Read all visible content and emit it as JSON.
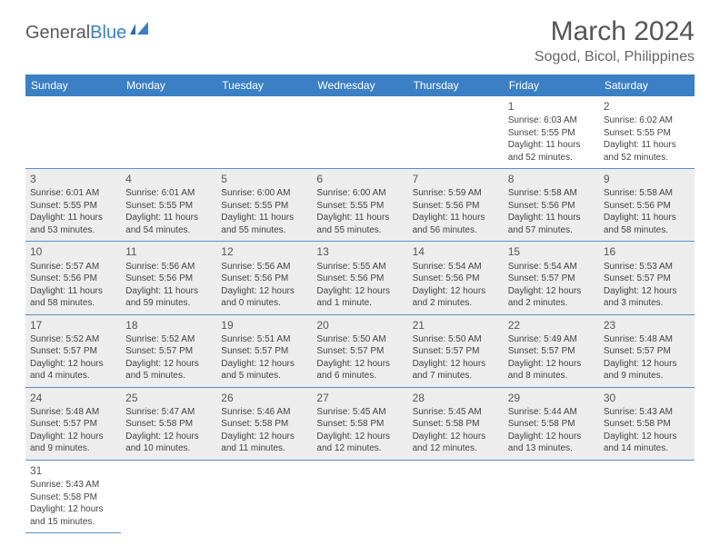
{
  "logo": {
    "text1": "General",
    "text2": "Blue"
  },
  "title": "March 2024",
  "location": "Sogod, Bicol, Philippines",
  "colors": {
    "header_bg": "#3b7fc4",
    "header_text": "#ffffff",
    "cell_border": "#5a8fc7",
    "shade_bg": "#ededed",
    "text": "#444444",
    "title_text": "#555555"
  },
  "weekdays": [
    "Sunday",
    "Monday",
    "Tuesday",
    "Wednesday",
    "Thursday",
    "Friday",
    "Saturday"
  ],
  "weeks": [
    [
      null,
      null,
      null,
      null,
      null,
      {
        "n": "1",
        "sr": "Sunrise: 6:03 AM",
        "ss": "Sunset: 5:55 PM",
        "d1": "Daylight: 11 hours",
        "d2": "and 52 minutes."
      },
      {
        "n": "2",
        "sr": "Sunrise: 6:02 AM",
        "ss": "Sunset: 5:55 PM",
        "d1": "Daylight: 11 hours",
        "d2": "and 52 minutes."
      }
    ],
    [
      {
        "n": "3",
        "sr": "Sunrise: 6:01 AM",
        "ss": "Sunset: 5:55 PM",
        "d1": "Daylight: 11 hours",
        "d2": "and 53 minutes."
      },
      {
        "n": "4",
        "sr": "Sunrise: 6:01 AM",
        "ss": "Sunset: 5:55 PM",
        "d1": "Daylight: 11 hours",
        "d2": "and 54 minutes."
      },
      {
        "n": "5",
        "sr": "Sunrise: 6:00 AM",
        "ss": "Sunset: 5:55 PM",
        "d1": "Daylight: 11 hours",
        "d2": "and 55 minutes."
      },
      {
        "n": "6",
        "sr": "Sunrise: 6:00 AM",
        "ss": "Sunset: 5:55 PM",
        "d1": "Daylight: 11 hours",
        "d2": "and 55 minutes."
      },
      {
        "n": "7",
        "sr": "Sunrise: 5:59 AM",
        "ss": "Sunset: 5:56 PM",
        "d1": "Daylight: 11 hours",
        "d2": "and 56 minutes."
      },
      {
        "n": "8",
        "sr": "Sunrise: 5:58 AM",
        "ss": "Sunset: 5:56 PM",
        "d1": "Daylight: 11 hours",
        "d2": "and 57 minutes."
      },
      {
        "n": "9",
        "sr": "Sunrise: 5:58 AM",
        "ss": "Sunset: 5:56 PM",
        "d1": "Daylight: 11 hours",
        "d2": "and 58 minutes."
      }
    ],
    [
      {
        "n": "10",
        "sr": "Sunrise: 5:57 AM",
        "ss": "Sunset: 5:56 PM",
        "d1": "Daylight: 11 hours",
        "d2": "and 58 minutes."
      },
      {
        "n": "11",
        "sr": "Sunrise: 5:56 AM",
        "ss": "Sunset: 5:56 PM",
        "d1": "Daylight: 11 hours",
        "d2": "and 59 minutes."
      },
      {
        "n": "12",
        "sr": "Sunrise: 5:56 AM",
        "ss": "Sunset: 5:56 PM",
        "d1": "Daylight: 12 hours",
        "d2": "and 0 minutes."
      },
      {
        "n": "13",
        "sr": "Sunrise: 5:55 AM",
        "ss": "Sunset: 5:56 PM",
        "d1": "Daylight: 12 hours",
        "d2": "and 1 minute."
      },
      {
        "n": "14",
        "sr": "Sunrise: 5:54 AM",
        "ss": "Sunset: 5:56 PM",
        "d1": "Daylight: 12 hours",
        "d2": "and 2 minutes."
      },
      {
        "n": "15",
        "sr": "Sunrise: 5:54 AM",
        "ss": "Sunset: 5:57 PM",
        "d1": "Daylight: 12 hours",
        "d2": "and 2 minutes."
      },
      {
        "n": "16",
        "sr": "Sunrise: 5:53 AM",
        "ss": "Sunset: 5:57 PM",
        "d1": "Daylight: 12 hours",
        "d2": "and 3 minutes."
      }
    ],
    [
      {
        "n": "17",
        "sr": "Sunrise: 5:52 AM",
        "ss": "Sunset: 5:57 PM",
        "d1": "Daylight: 12 hours",
        "d2": "and 4 minutes."
      },
      {
        "n": "18",
        "sr": "Sunrise: 5:52 AM",
        "ss": "Sunset: 5:57 PM",
        "d1": "Daylight: 12 hours",
        "d2": "and 5 minutes."
      },
      {
        "n": "19",
        "sr": "Sunrise: 5:51 AM",
        "ss": "Sunset: 5:57 PM",
        "d1": "Daylight: 12 hours",
        "d2": "and 5 minutes."
      },
      {
        "n": "20",
        "sr": "Sunrise: 5:50 AM",
        "ss": "Sunset: 5:57 PM",
        "d1": "Daylight: 12 hours",
        "d2": "and 6 minutes."
      },
      {
        "n": "21",
        "sr": "Sunrise: 5:50 AM",
        "ss": "Sunset: 5:57 PM",
        "d1": "Daylight: 12 hours",
        "d2": "and 7 minutes."
      },
      {
        "n": "22",
        "sr": "Sunrise: 5:49 AM",
        "ss": "Sunset: 5:57 PM",
        "d1": "Daylight: 12 hours",
        "d2": "and 8 minutes."
      },
      {
        "n": "23",
        "sr": "Sunrise: 5:48 AM",
        "ss": "Sunset: 5:57 PM",
        "d1": "Daylight: 12 hours",
        "d2": "and 9 minutes."
      }
    ],
    [
      {
        "n": "24",
        "sr": "Sunrise: 5:48 AM",
        "ss": "Sunset: 5:57 PM",
        "d1": "Daylight: 12 hours",
        "d2": "and 9 minutes."
      },
      {
        "n": "25",
        "sr": "Sunrise: 5:47 AM",
        "ss": "Sunset: 5:58 PM",
        "d1": "Daylight: 12 hours",
        "d2": "and 10 minutes."
      },
      {
        "n": "26",
        "sr": "Sunrise: 5:46 AM",
        "ss": "Sunset: 5:58 PM",
        "d1": "Daylight: 12 hours",
        "d2": "and 11 minutes."
      },
      {
        "n": "27",
        "sr": "Sunrise: 5:45 AM",
        "ss": "Sunset: 5:58 PM",
        "d1": "Daylight: 12 hours",
        "d2": "and 12 minutes."
      },
      {
        "n": "28",
        "sr": "Sunrise: 5:45 AM",
        "ss": "Sunset: 5:58 PM",
        "d1": "Daylight: 12 hours",
        "d2": "and 12 minutes."
      },
      {
        "n": "29",
        "sr": "Sunrise: 5:44 AM",
        "ss": "Sunset: 5:58 PM",
        "d1": "Daylight: 12 hours",
        "d2": "and 13 minutes."
      },
      {
        "n": "30",
        "sr": "Sunrise: 5:43 AM",
        "ss": "Sunset: 5:58 PM",
        "d1": "Daylight: 12 hours",
        "d2": "and 14 minutes."
      }
    ],
    [
      {
        "n": "31",
        "sr": "Sunrise: 5:43 AM",
        "ss": "Sunset: 5:58 PM",
        "d1": "Daylight: 12 hours",
        "d2": "and 15 minutes."
      },
      null,
      null,
      null,
      null,
      null,
      null
    ]
  ]
}
